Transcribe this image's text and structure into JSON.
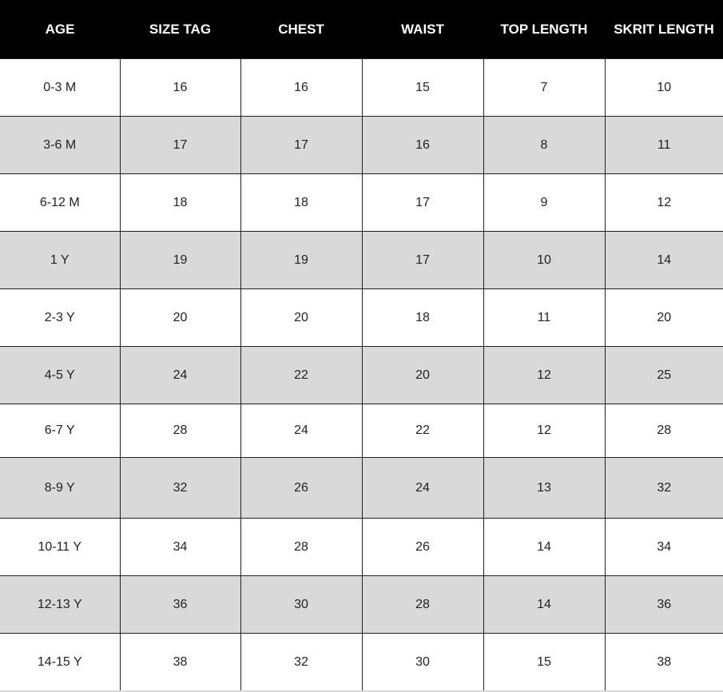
{
  "table": {
    "headers": [
      "AGE",
      "SIZE TAG",
      "CHEST",
      "WAIST",
      "TOP LENGTH",
      "SKRIT LENGTH"
    ],
    "rows": [
      [
        "0-3 M",
        "16",
        "16",
        "15",
        "7",
        "10"
      ],
      [
        "3-6 M",
        "17",
        "17",
        "16",
        "8",
        "11"
      ],
      [
        "6-12 M",
        "18",
        "18",
        "17",
        "9",
        "12"
      ],
      [
        "1 Y",
        "19",
        "19",
        "17",
        "10",
        "14"
      ],
      [
        "2-3 Y",
        "20",
        "20",
        "18",
        "11",
        "20"
      ],
      [
        "4-5 Y",
        "24",
        "22",
        "20",
        "12",
        "25"
      ],
      [
        "6-7 Y",
        "28",
        "24",
        "22",
        "12",
        "28"
      ],
      [
        "8-9 Y",
        "32",
        "26",
        "24",
        "13",
        "32"
      ],
      [
        "10-11 Y",
        "34",
        "28",
        "26",
        "14",
        "34"
      ],
      [
        "12-13 Y",
        "36",
        "30",
        "28",
        "14",
        "36"
      ],
      [
        "14-15 Y",
        "38",
        "32",
        "30",
        "15",
        "38"
      ]
    ]
  },
  "colors": {
    "header_bg": "#000000",
    "header_text": "#ffffff",
    "alt_row_bg": "#d9d9d9",
    "row_bg": "#ffffff"
  }
}
